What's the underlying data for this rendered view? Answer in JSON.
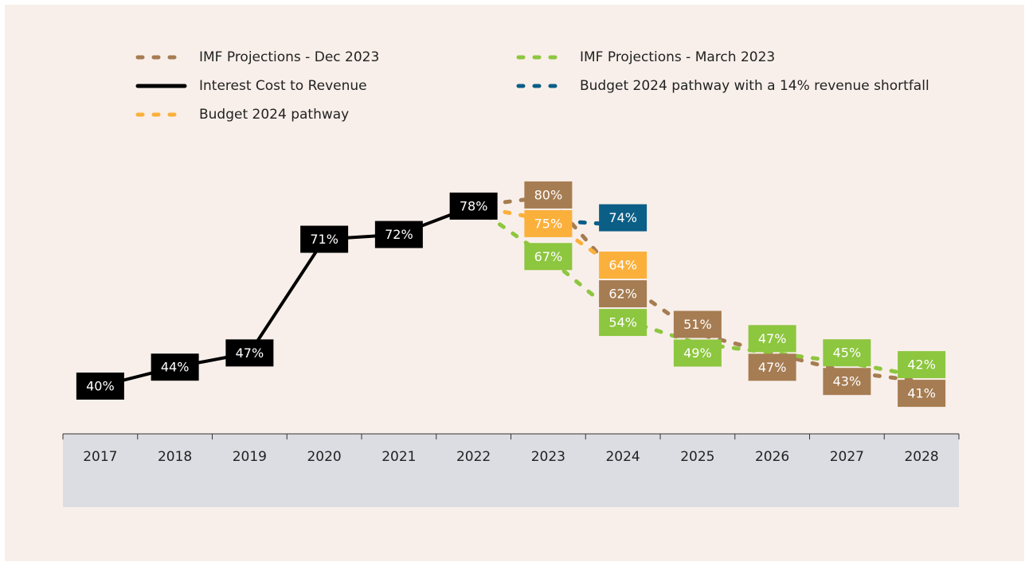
{
  "chart_data": {
    "type": "line",
    "categories": [
      "2017",
      "2018",
      "2019",
      "2020",
      "2021",
      "2022",
      "2023",
      "2024",
      "2025",
      "2026",
      "2027",
      "2028"
    ],
    "value_suffix_labels": null,
    "series": [
      {
        "name": "IMF Projections - Dec 2023",
        "color": "#a67c52",
        "dashed": true,
        "values": [
          null,
          null,
          null,
          null,
          null,
          78,
          80,
          62,
          51,
          47,
          43,
          41
        ],
        "value_labels": [
          null,
          null,
          null,
          null,
          null,
          null,
          "80%",
          "62%",
          "51%",
          "47%",
          "43%",
          "41%"
        ]
      },
      {
        "name": "IMF Projections - March 2023",
        "color": "#8dc63f",
        "dashed": true,
        "values": [
          null,
          null,
          null,
          null,
          null,
          78,
          67,
          54,
          49,
          47,
          45,
          42
        ],
        "value_labels": [
          null,
          null,
          null,
          null,
          null,
          null,
          "67%",
          "54%",
          "49%",
          "47%",
          "45%",
          "42%"
        ]
      },
      {
        "name": "Interest Cost to Revenue",
        "color": "#000000",
        "dashed": false,
        "values": [
          40,
          44,
          47,
          71,
          72,
          78,
          null,
          null,
          null,
          null,
          null,
          null
        ],
        "value_labels": [
          "40%",
          "44%",
          "47%",
          "71%",
          "72%",
          "78%",
          null,
          null,
          null,
          null,
          null,
          null
        ]
      },
      {
        "name": "Budget 2024 pathway with a 14% revenue shortfall",
        "color": "#0b5e86",
        "dashed": true,
        "values": [
          null,
          null,
          null,
          null,
          null,
          null,
          75,
          74,
          null,
          null,
          null,
          null
        ],
        "value_labels": [
          null,
          null,
          null,
          null,
          null,
          null,
          null,
          "74%",
          null,
          null,
          null,
          null
        ]
      },
      {
        "name": "Budget 2024 pathway",
        "color": "#fbb03b",
        "dashed": true,
        "values": [
          null,
          null,
          null,
          null,
          null,
          78,
          75,
          64,
          null,
          null,
          null,
          null
        ],
        "value_labels": [
          null,
          null,
          null,
          null,
          null,
          null,
          "75%",
          "64%",
          null,
          null,
          null,
          null
        ]
      }
    ],
    "legend": "top"
  }
}
